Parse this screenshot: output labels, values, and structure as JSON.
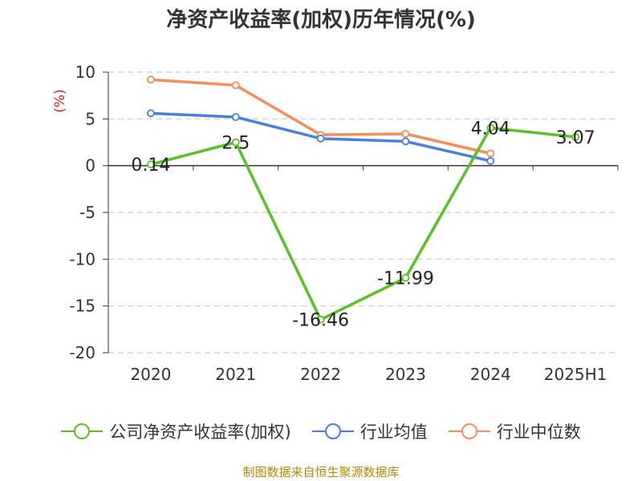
{
  "chart_data": {
    "type": "line",
    "title": "净资产收益率(加权)历年情况(%)",
    "ylabel": "(%)",
    "xlabel": "",
    "categories": [
      "2020",
      "2021",
      "2022",
      "2023",
      "2024",
      "2025H1"
    ],
    "ylim": [
      -20,
      10
    ],
    "yticks": [
      10,
      5,
      0,
      -5,
      -10,
      -15,
      -20
    ],
    "grid": true,
    "legend_position": "bottom",
    "series": [
      {
        "name": "公司净资产收益率(加权)",
        "color": "#5ac024",
        "values": [
          0.14,
          2.5,
          -16.46,
          -11.99,
          4.04,
          3.07
        ],
        "labels": [
          "0.14",
          "2.5",
          "-16.46",
          "-11.99",
          "4.04",
          "3.07"
        ]
      },
      {
        "name": "行业均值",
        "color": "#4a7fde",
        "values": [
          5.6,
          5.2,
          2.9,
          2.6,
          0.5,
          null
        ]
      },
      {
        "name": "行业中位数",
        "color": "#f68e5a",
        "values": [
          9.2,
          8.6,
          3.3,
          3.4,
          1.3,
          null
        ]
      }
    ],
    "ylabel_color": "#e02020"
  },
  "footer": "制图数据来自恒生聚源数据库"
}
